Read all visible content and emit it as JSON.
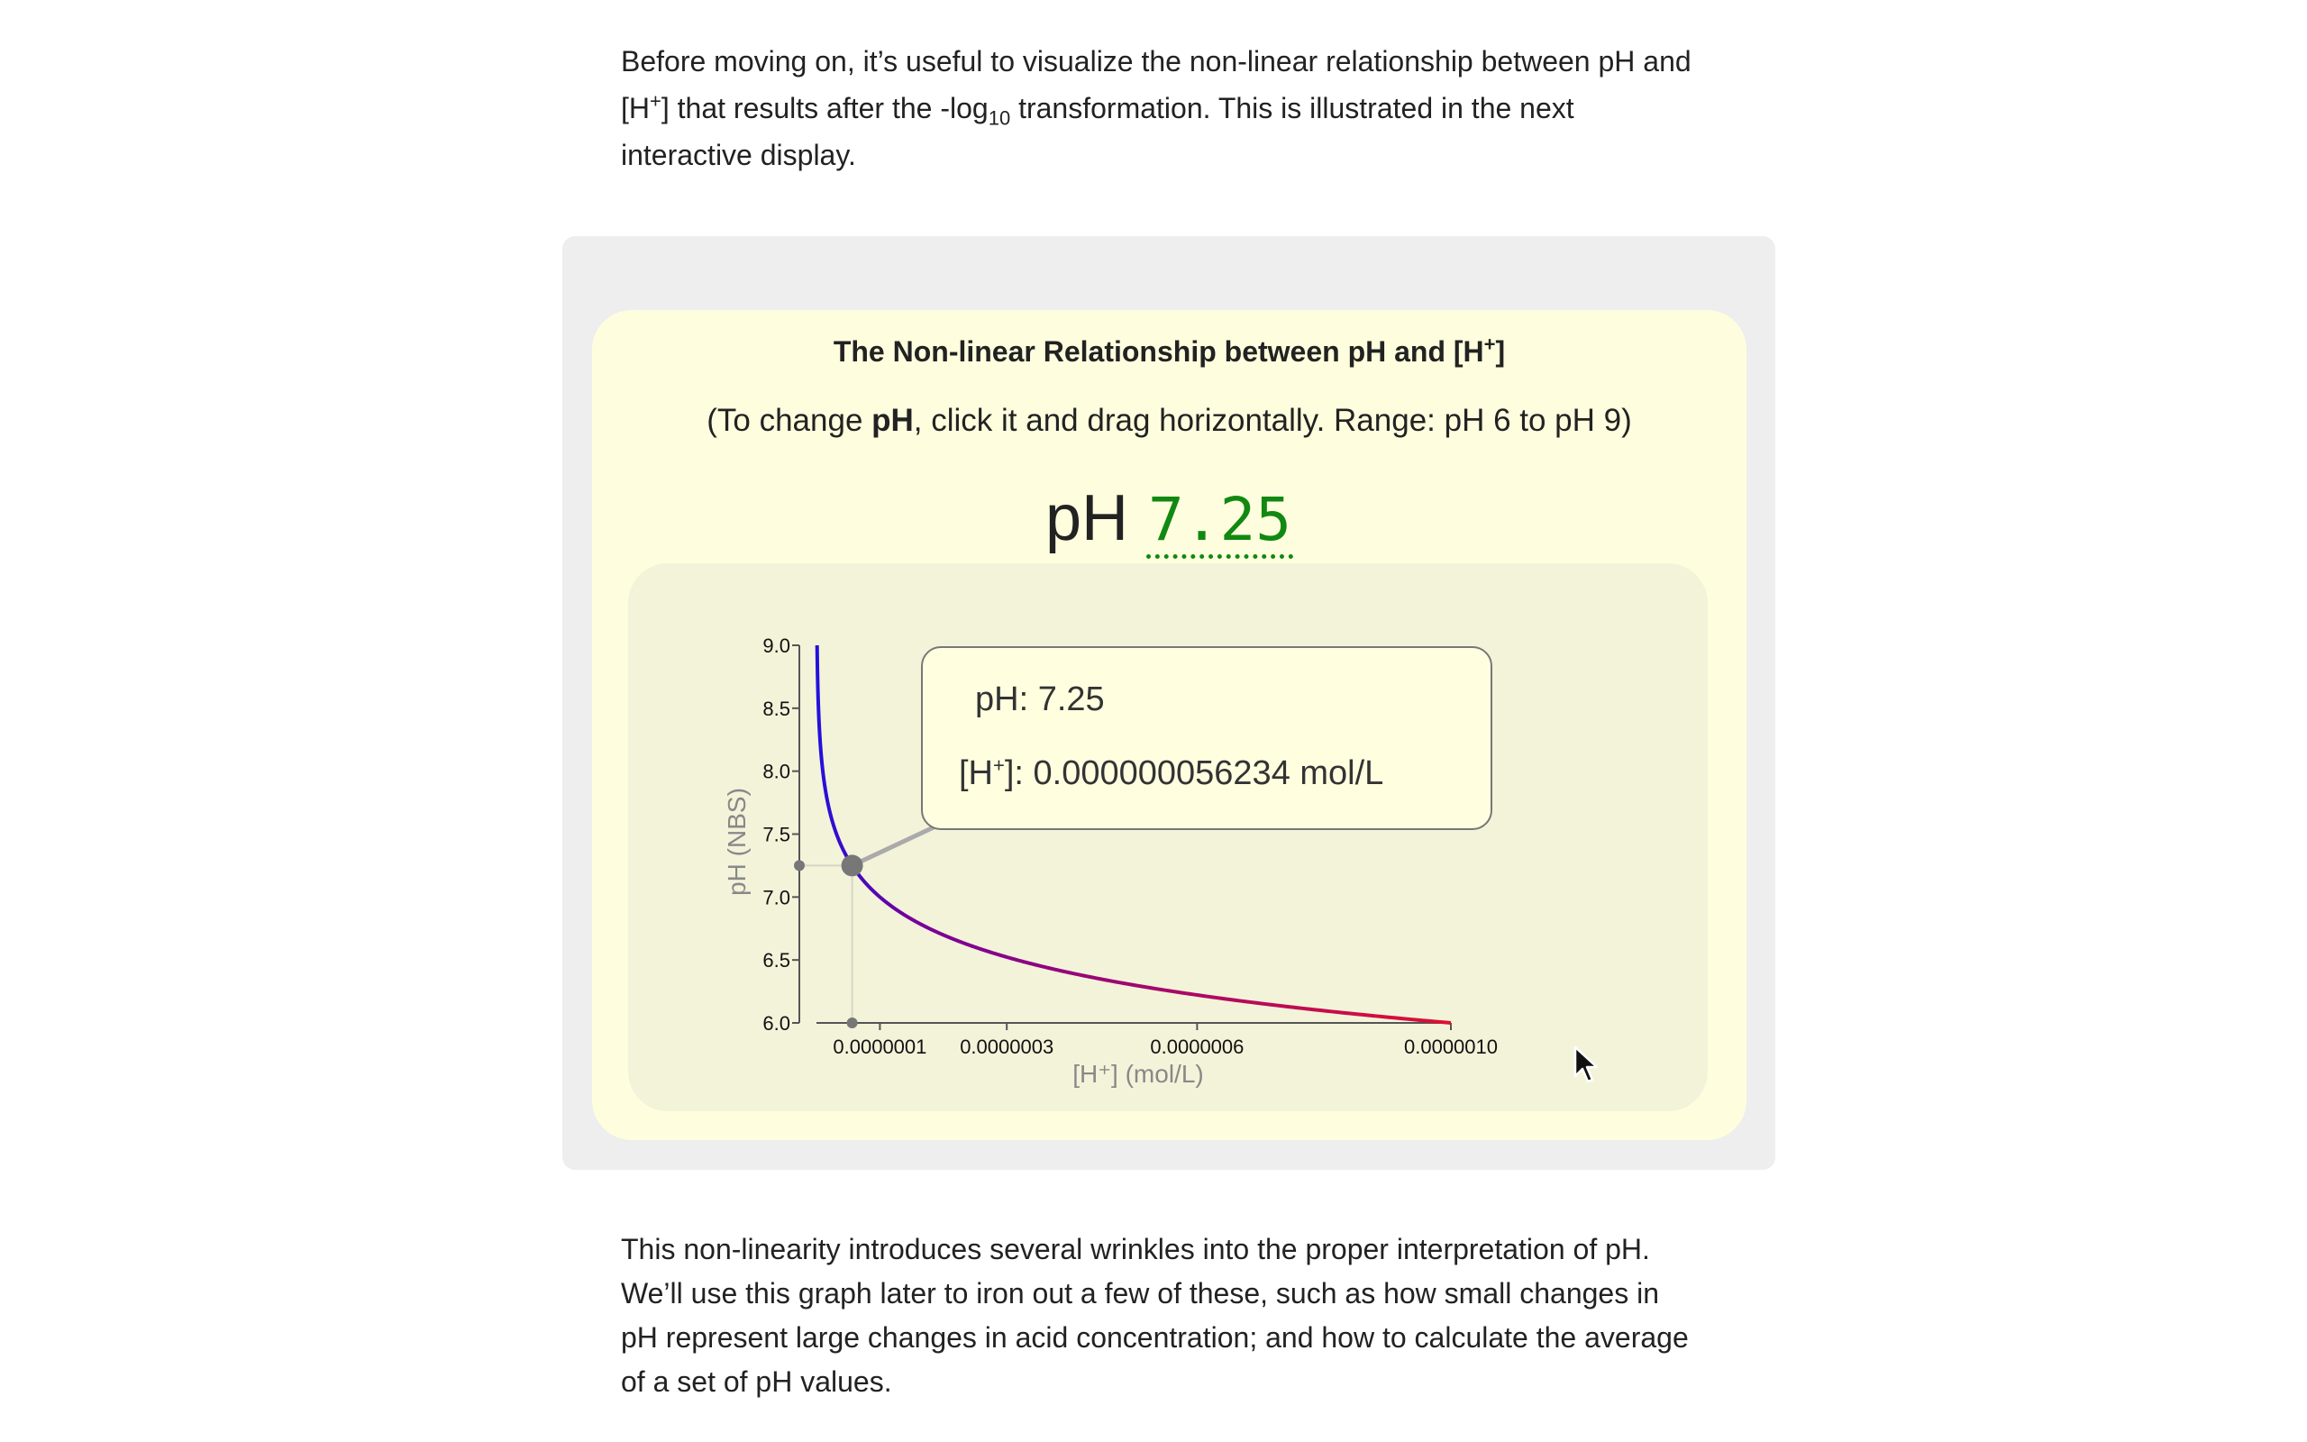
{
  "intro": {
    "text_a": "Before moving on, it’s useful to visualize the non-linear relationship between pH and [H",
    "sup_plus": "+",
    "text_b": "] that results after the -log",
    "sub_10": "10",
    "text_c": " transformation. This is illustrated in the next interactive display."
  },
  "widget": {
    "title_a": "The Non-linear Relationship between pH and [H",
    "title_sup": "+",
    "title_b": "]",
    "instr_a": "(To change ",
    "instr_bold": "pH",
    "instr_b": ", click it and drag horizontally. Range: pH 6 to pH 9)",
    "ph_prefix": "pH",
    "ph_value": "7.25",
    "tooltip": {
      "ph_line": "pH: 7.25",
      "h_a": "[H",
      "h_sup": "+",
      "h_b": "]: 0.000000056234 mol/L"
    }
  },
  "chart_data": {
    "type": "line",
    "title": "",
    "xlabel": "[H⁺] (mol/L)",
    "ylabel": "pH (NBS)",
    "xlim": [
      0,
      1e-06
    ],
    "ylim": [
      6.0,
      9.0
    ],
    "x_ticks": [
      1e-07,
      3e-07,
      6e-07,
      1e-06
    ],
    "x_tick_labels": [
      "0.0000001",
      "0.0000003",
      "0.0000006",
      "0.0000010"
    ],
    "y_ticks": [
      6.0,
      6.5,
      7.0,
      7.5,
      8.0,
      8.5,
      9.0
    ],
    "y_tick_labels": [
      "6.0",
      "6.5",
      "7.0",
      "7.5",
      "8.0",
      "8.5",
      "9.0"
    ],
    "series": [
      {
        "relation": "pH = -log10([H+])",
        "color_gradient": [
          "#2211dd",
          "#770099",
          "#dd1133"
        ],
        "ph_min": 6.0,
        "ph_max": 9.0
      }
    ],
    "selected": {
      "ph": 7.25,
      "h": 5.6234e-08
    },
    "grid": false,
    "legend": "none"
  },
  "outro": {
    "text": "This non-linearity introduces several wrinkles into the proper interpretation of pH. We’ll use this graph later to iron out a few of these, such as how small changes in pH represent large changes in acid concentration; and how to calculate the average of a set of pH values."
  }
}
